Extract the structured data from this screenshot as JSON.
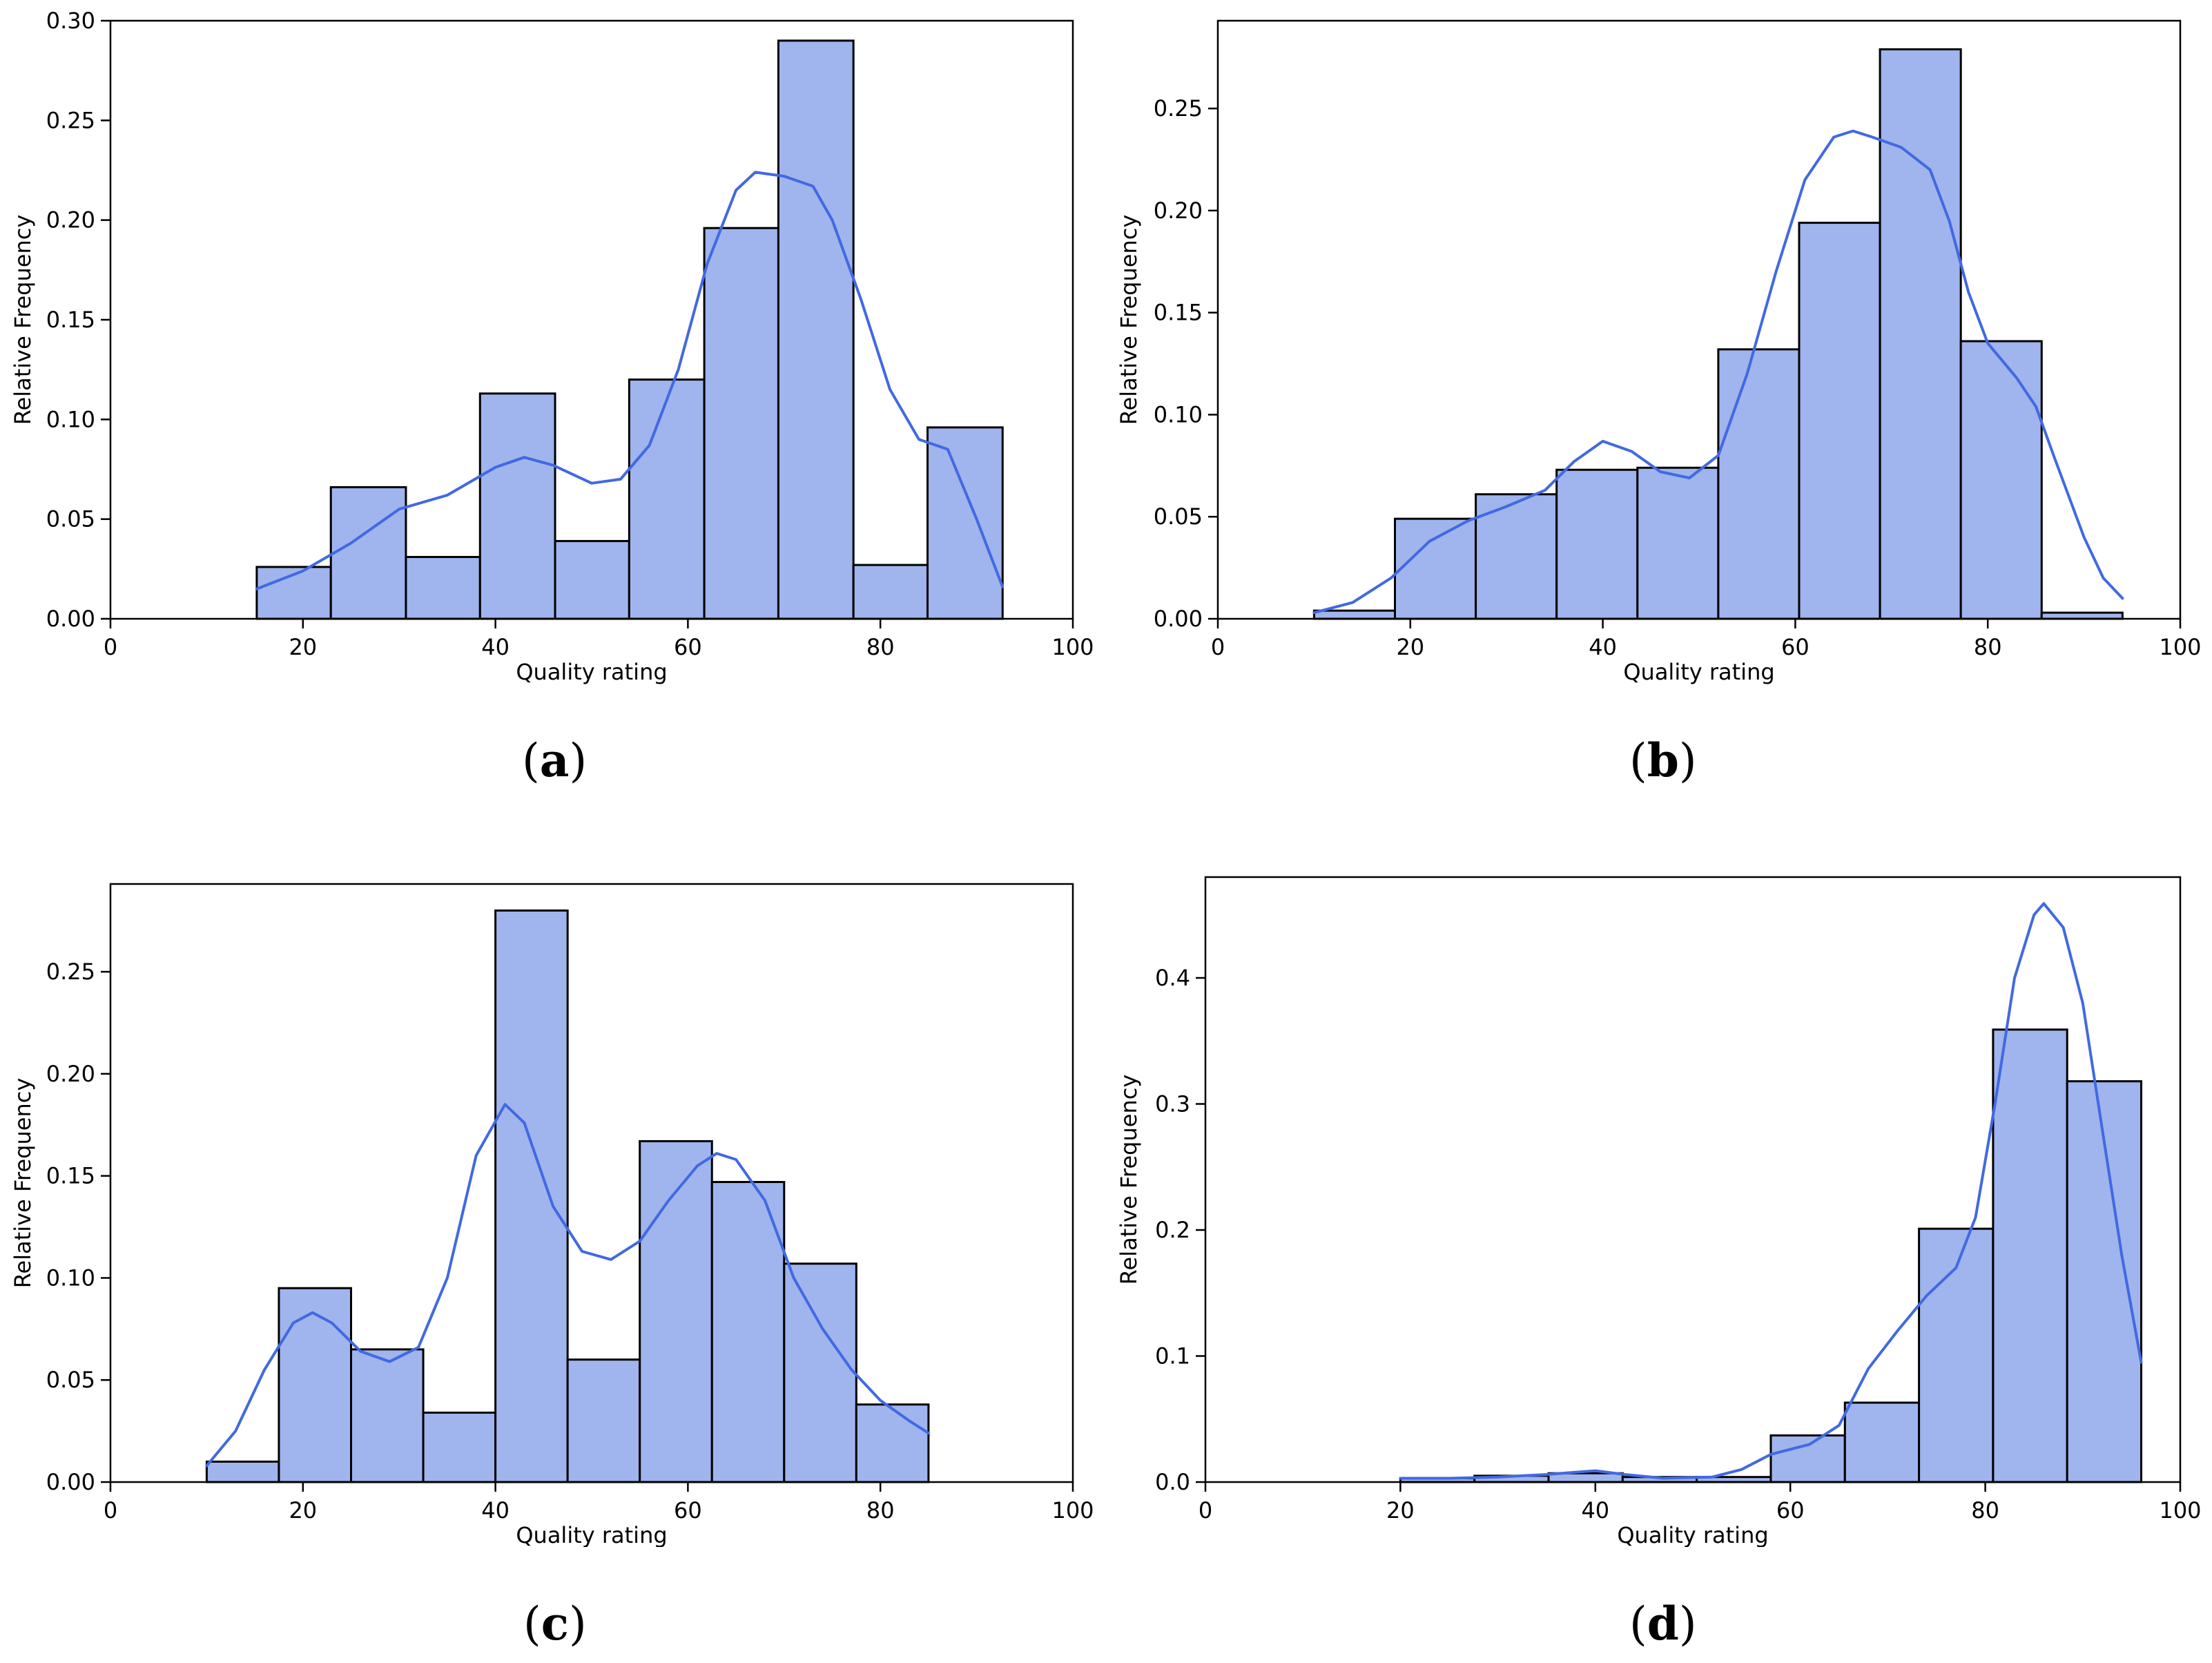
{
  "figure": {
    "bar_color": "#a0b4ee",
    "edge_color": "#000000",
    "kde_color": "#4169e1",
    "xlabel": "Quality rating",
    "ylabel": "Relative Frequency"
  },
  "chart_data": [
    {
      "type": "bar",
      "panel": "a",
      "caption_letter": "a",
      "caption": "(a)",
      "xlabel": "Quality rating",
      "ylabel": "Relative Frequency",
      "xlim": [
        0,
        100
      ],
      "ylim": [
        0,
        0.3
      ],
      "xticks": [
        0,
        20,
        40,
        60,
        80,
        100
      ],
      "xtick_labels": [
        "0",
        "20",
        "40",
        "60",
        "80",
        "100"
      ],
      "yticks": [
        0,
        0.05,
        0.1,
        0.15,
        0.2,
        0.25,
        0.3
      ],
      "ytick_labels": [
        "0.00",
        "0.05",
        "0.10",
        "0.15",
        "0.20",
        "0.25",
        "0.30"
      ],
      "bin_edges": [
        15.2,
        22.9,
        30.7,
        38.4,
        46.2,
        53.9,
        61.7,
        69.4,
        77.2,
        84.9,
        92.7
      ],
      "values": [
        0.026,
        0.066,
        0.031,
        0.113,
        0.039,
        0.12,
        0.196,
        0.29,
        0.027,
        0.096
      ],
      "kde": [
        [
          15.2,
          0.015
        ],
        [
          20,
          0.024
        ],
        [
          25,
          0.038
        ],
        [
          30,
          0.055
        ],
        [
          35,
          0.062
        ],
        [
          40,
          0.076
        ],
        [
          43,
          0.081
        ],
        [
          46,
          0.077
        ],
        [
          50,
          0.068
        ],
        [
          53,
          0.07
        ],
        [
          56,
          0.087
        ],
        [
          59,
          0.125
        ],
        [
          62,
          0.178
        ],
        [
          65,
          0.215
        ],
        [
          67,
          0.224
        ],
        [
          70,
          0.222
        ],
        [
          73,
          0.217
        ],
        [
          75,
          0.2
        ],
        [
          78,
          0.16
        ],
        [
          81,
          0.115
        ],
        [
          84,
          0.09
        ],
        [
          87,
          0.085
        ],
        [
          90,
          0.05
        ],
        [
          92.7,
          0.016
        ]
      ]
    },
    {
      "type": "bar",
      "panel": "b",
      "caption_letter": "b",
      "caption": "(b)",
      "xlabel": "Quality rating",
      "ylabel": "Relative Frequency",
      "xlim": [
        0,
        100
      ],
      "ylim": [
        0,
        0.293
      ],
      "xticks": [
        0,
        20,
        40,
        60,
        80,
        100
      ],
      "xtick_labels": [
        "0",
        "20",
        "40",
        "60",
        "80",
        "100"
      ],
      "yticks": [
        0,
        0.05,
        0.1,
        0.15,
        0.2,
        0.25
      ],
      "ytick_labels": [
        "0.00",
        "0.05",
        "0.10",
        "0.15",
        "0.20",
        "0.25"
      ],
      "bin_edges": [
        10,
        18.4,
        26.8,
        35.2,
        43.6,
        52,
        60.4,
        68.8,
        77.2,
        85.6,
        94
      ],
      "values": [
        0.004,
        0.049,
        0.061,
        0.073,
        0.074,
        0.132,
        0.194,
        0.279,
        0.136,
        0.003
      ],
      "kde": [
        [
          10,
          0.003
        ],
        [
          14,
          0.008
        ],
        [
          18,
          0.02
        ],
        [
          22,
          0.038
        ],
        [
          26,
          0.048
        ],
        [
          30,
          0.055
        ],
        [
          34,
          0.063
        ],
        [
          37,
          0.077
        ],
        [
          40,
          0.087
        ],
        [
          43,
          0.082
        ],
        [
          46,
          0.072
        ],
        [
          49,
          0.069
        ],
        [
          52,
          0.08
        ],
        [
          55,
          0.12
        ],
        [
          58,
          0.17
        ],
        [
          61,
          0.215
        ],
        [
          64,
          0.236
        ],
        [
          66,
          0.239
        ],
        [
          68,
          0.236
        ],
        [
          71,
          0.231
        ],
        [
          74,
          0.22
        ],
        [
          76,
          0.195
        ],
        [
          78,
          0.16
        ],
        [
          80,
          0.135
        ],
        [
          83,
          0.118
        ],
        [
          85,
          0.104
        ],
        [
          87,
          0.078
        ],
        [
          90,
          0.04
        ],
        [
          92,
          0.02
        ],
        [
          94,
          0.01
        ]
      ]
    },
    {
      "type": "bar",
      "panel": "c",
      "caption_letter": "c",
      "caption": "(c)",
      "xlabel": "Quality rating",
      "ylabel": "Relative Frequency",
      "xlim": [
        0,
        100
      ],
      "ylim": [
        0,
        0.293
      ],
      "xticks": [
        0,
        20,
        40,
        60,
        80,
        100
      ],
      "xtick_labels": [
        "0",
        "20",
        "40",
        "60",
        "80",
        "100"
      ],
      "yticks": [
        0,
        0.05,
        0.1,
        0.15,
        0.2,
        0.25
      ],
      "ytick_labels": [
        "0.00",
        "0.05",
        "0.10",
        "0.15",
        "0.20",
        "0.25"
      ],
      "bin_edges": [
        10,
        17.5,
        25,
        32.5,
        40,
        47.5,
        55,
        62.5,
        70,
        77.5,
        85
      ],
      "values": [
        0.01,
        0.095,
        0.065,
        0.034,
        0.28,
        0.06,
        0.167,
        0.147,
        0.107,
        0.038
      ],
      "kde": [
        [
          10,
          0.008
        ],
        [
          13,
          0.025
        ],
        [
          16,
          0.055
        ],
        [
          19,
          0.078
        ],
        [
          21,
          0.083
        ],
        [
          23,
          0.078
        ],
        [
          26,
          0.064
        ],
        [
          29,
          0.059
        ],
        [
          32,
          0.066
        ],
        [
          35,
          0.1
        ],
        [
          38,
          0.16
        ],
        [
          41,
          0.185
        ],
        [
          43,
          0.176
        ],
        [
          46,
          0.135
        ],
        [
          49,
          0.113
        ],
        [
          52,
          0.109
        ],
        [
          55,
          0.118
        ],
        [
          58,
          0.138
        ],
        [
          61,
          0.155
        ],
        [
          63,
          0.161
        ],
        [
          65,
          0.158
        ],
        [
          68,
          0.138
        ],
        [
          71,
          0.1
        ],
        [
          74,
          0.075
        ],
        [
          77,
          0.055
        ],
        [
          80,
          0.04
        ],
        [
          83,
          0.03
        ],
        [
          85,
          0.024
        ]
      ]
    },
    {
      "type": "bar",
      "panel": "d",
      "caption_letter": "d",
      "caption": "(d)",
      "xlabel": "Quality rating",
      "ylabel": "Relative Frequency",
      "xlim": [
        0,
        100
      ],
      "ylim": [
        0,
        0.48
      ],
      "xticks": [
        0,
        20,
        40,
        60,
        80,
        100
      ],
      "xtick_labels": [
        "0",
        "20",
        "40",
        "60",
        "80",
        "100"
      ],
      "yticks": [
        0,
        0.1,
        0.2,
        0.3,
        0.4
      ],
      "ytick_labels": [
        "0.0",
        "0.1",
        "0.2",
        "0.3",
        "0.4"
      ],
      "bin_edges": [
        20,
        27.6,
        35.2,
        42.8,
        50.4,
        58,
        65.6,
        73.2,
        80.8,
        88.4,
        96
      ],
      "values": [
        0.003,
        0.005,
        0.007,
        0.004,
        0.004,
        0.037,
        0.063,
        0.201,
        0.359,
        0.318
      ],
      "kde": [
        [
          20,
          0.003
        ],
        [
          25,
          0.003
        ],
        [
          30,
          0.004
        ],
        [
          35,
          0.006
        ],
        [
          40,
          0.009
        ],
        [
          43,
          0.006
        ],
        [
          47,
          0.003
        ],
        [
          52,
          0.004
        ],
        [
          55,
          0.01
        ],
        [
          58,
          0.022
        ],
        [
          62,
          0.03
        ],
        [
          65,
          0.045
        ],
        [
          68,
          0.09
        ],
        [
          71,
          0.12
        ],
        [
          74,
          0.148
        ],
        [
          77,
          0.17
        ],
        [
          79,
          0.21
        ],
        [
          81,
          0.3
        ],
        [
          83,
          0.4
        ],
        [
          85,
          0.45
        ],
        [
          86,
          0.459
        ],
        [
          88,
          0.44
        ],
        [
          90,
          0.38
        ],
        [
          92,
          0.28
        ],
        [
          94,
          0.18
        ],
        [
          96,
          0.095
        ]
      ]
    }
  ]
}
